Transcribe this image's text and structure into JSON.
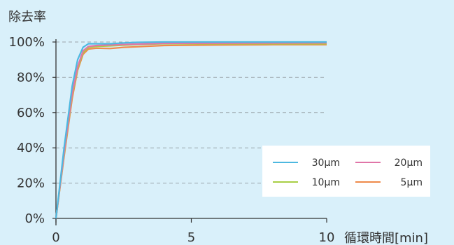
{
  "chart_data": {
    "type": "line",
    "title": "除去率",
    "xlabel": "循環時間[min]",
    "ylabel": "",
    "xlim": [
      0,
      10
    ],
    "ylim": [
      0,
      100
    ],
    "x_ticks": [
      "0",
      "5",
      "10"
    ],
    "y_ticks": [
      "0%",
      "20%",
      "40%",
      "60%",
      "80%",
      "100%"
    ],
    "grid": true,
    "legend_position": "bottom-right",
    "series": [
      {
        "name": "30μm",
        "color": "#4db8e0",
        "x": [
          0,
          0.3,
          0.6,
          0.8,
          1.0,
          1.2,
          1.5,
          2.0,
          2.5,
          3.0,
          4.0,
          6.0,
          8.0,
          10.0
        ],
        "y": [
          0,
          40,
          75,
          90,
          97,
          99,
          99,
          99,
          99.5,
          99.8,
          100,
          100,
          100,
          100
        ]
      },
      {
        "name": "20μm",
        "color": "#e075a8",
        "x": [
          0,
          0.3,
          0.6,
          0.8,
          1.0,
          1.2,
          1.5,
          2.0,
          2.5,
          3.0,
          4.0,
          6.0,
          8.0,
          10.0
        ],
        "y": [
          0,
          37,
          71,
          86,
          95,
          97.5,
          98,
          98.3,
          98.6,
          98.8,
          99.2,
          99.3,
          99.4,
          99.5
        ]
      },
      {
        "name": "10μm",
        "color": "#a8cf45",
        "x": [
          0,
          0.3,
          0.6,
          0.8,
          1.0,
          1.2,
          1.5,
          2.0,
          2.5,
          3.0,
          4.0,
          6.0,
          8.0,
          10.0
        ],
        "y": [
          0,
          36,
          70,
          85,
          94,
          97,
          97.5,
          97.8,
          98.2,
          98.6,
          99,
          99,
          99,
          99
        ]
      },
      {
        "name": "5μm",
        "color": "#ef8a4a",
        "x": [
          0,
          0.3,
          0.6,
          0.8,
          1.0,
          1.2,
          1.5,
          2.0,
          2.5,
          3.0,
          4.0,
          6.0,
          8.0,
          10.0
        ],
        "y": [
          0,
          35,
          68,
          84,
          93,
          96,
          96.5,
          96.3,
          97,
          97.3,
          98,
          98.3,
          98.5,
          98.5
        ]
      }
    ]
  }
}
